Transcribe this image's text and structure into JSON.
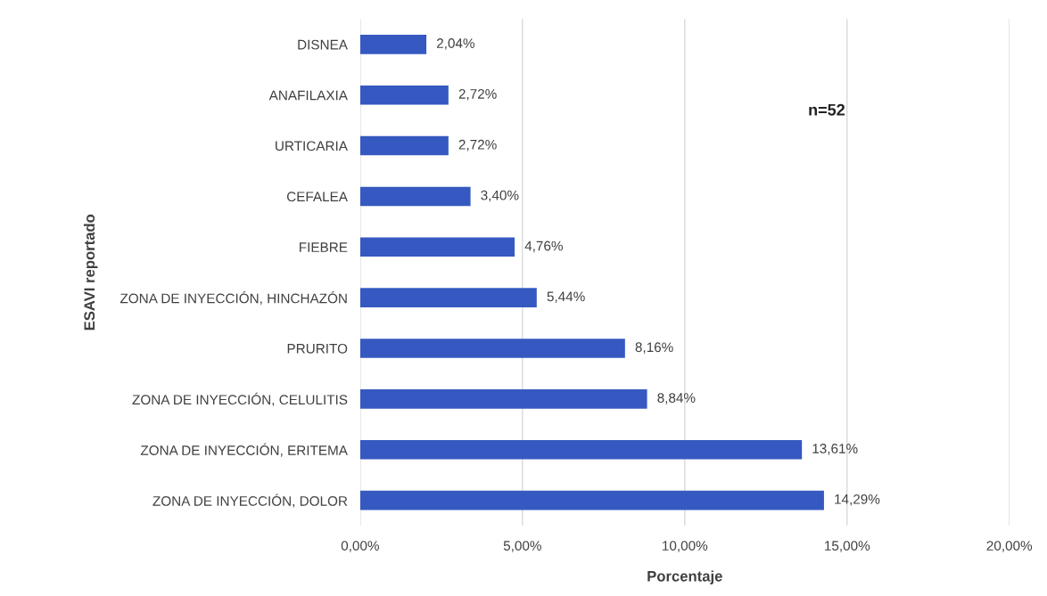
{
  "chart_data": {
    "type": "bar",
    "orientation": "horizontal",
    "xlabel": "Porcentaje",
    "ylabel": "ESAVI reportado",
    "categories": [
      "DISNEA",
      "ANAFILAXIA",
      "URTICARIA",
      "CEFALEA",
      "FIEBRE",
      "ZONA DE INYECCIÓN, HINCHAZÓN",
      "PRURITO",
      "ZONA DE INYECCIÓN, CELULITIS",
      "ZONA DE INYECCIÓN, ERITEMA",
      "ZONA DE INYECCIÓN, DOLOR"
    ],
    "values": [
      2.04,
      2.72,
      2.72,
      3.4,
      4.76,
      5.44,
      8.16,
      8.84,
      13.61,
      14.29
    ],
    "value_labels": [
      "2,04%",
      "2,72%",
      "2,72%",
      "3,40%",
      "4,76%",
      "5,44%",
      "8,16%",
      "8,84%",
      "13,61%",
      "14,29%"
    ],
    "color": "#3559c0",
    "xlim": [
      0,
      20
    ],
    "xticks": [
      {
        "value": 0,
        "label": "0,00%"
      },
      {
        "value": 5,
        "label": "5,00%"
      },
      {
        "value": 10,
        "label": "10,00%"
      },
      {
        "value": 15,
        "label": "15,00%"
      },
      {
        "value": 20,
        "label": "20,00%"
      }
    ],
    "grid": "x",
    "annotations": [
      "n=52"
    ]
  }
}
